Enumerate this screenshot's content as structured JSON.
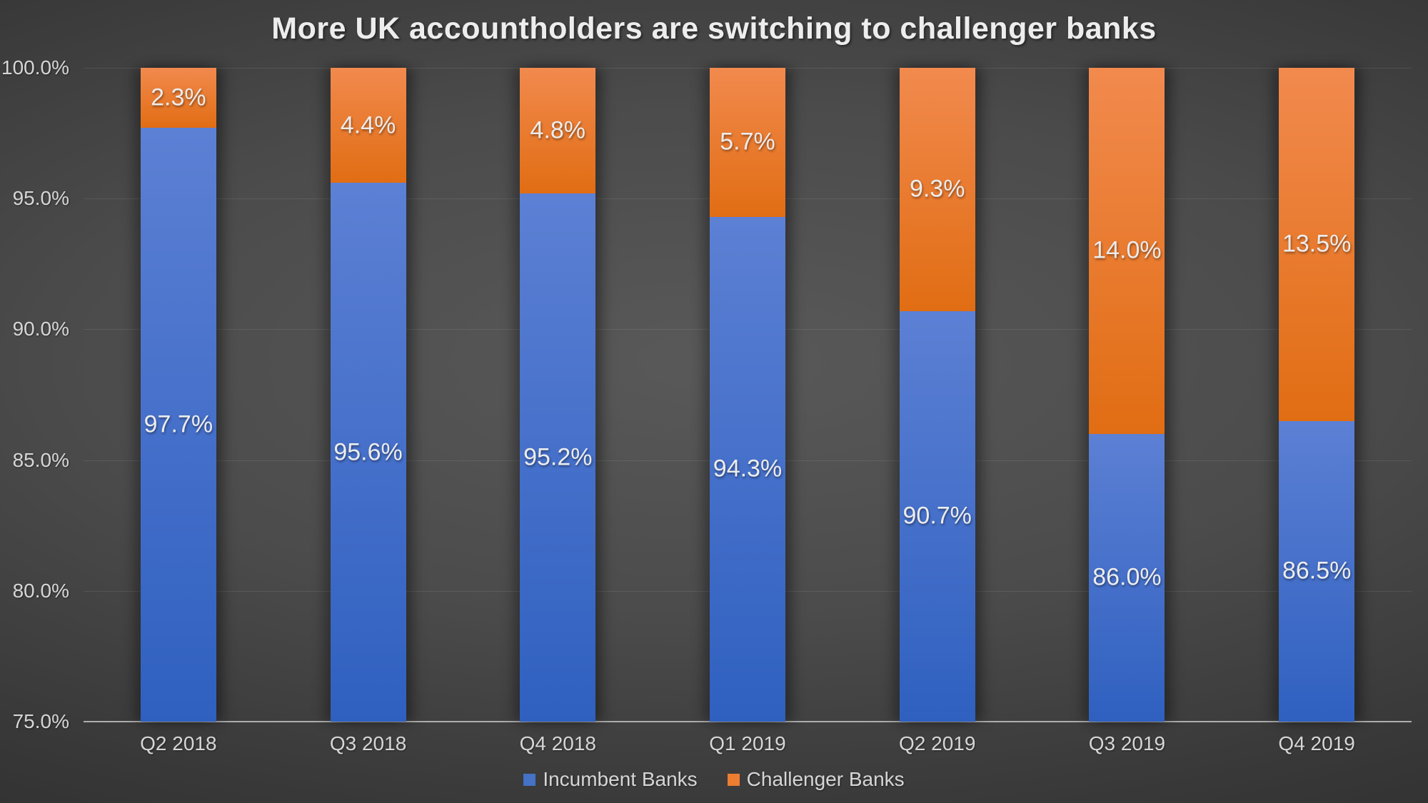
{
  "chart_data": {
    "type": "bar",
    "stacked": true,
    "orientation": "vertical",
    "title": "More UK accountholders are switching to challenger banks",
    "categories": [
      "Q2 2018",
      "Q3 2018",
      "Q4 2018",
      "Q1 2019",
      "Q2 2019",
      "Q3 2019",
      "Q4 2019"
    ],
    "series": [
      {
        "name": "Incumbent Banks",
        "color": "#4472c4",
        "gradient_top": "#5c80d4",
        "gradient_bottom": "#2f60c0",
        "values": [
          97.7,
          95.6,
          95.2,
          94.3,
          90.7,
          86.0,
          86.5
        ],
        "labels": [
          "97.7%",
          "95.6%",
          "95.2%",
          "94.3%",
          "90.7%",
          "86.0%",
          "86.5%"
        ]
      },
      {
        "name": "Challenger Banks",
        "color": "#ed7d31",
        "gradient_top": "#f28a4e",
        "gradient_bottom": "#e16d13",
        "values": [
          2.3,
          4.4,
          4.8,
          5.7,
          9.3,
          14.0,
          13.5
        ],
        "labels": [
          "2.3%",
          "4.4%",
          "4.8%",
          "5.7%",
          "9.3%",
          "14.0%",
          "13.5%"
        ]
      }
    ],
    "y_axis": {
      "min": 75,
      "max": 100,
      "tick_step": 5,
      "ticks": [
        75,
        80,
        85,
        90,
        95,
        100
      ],
      "tick_labels": [
        "75.0%",
        "80.0%",
        "85.0%",
        "90.0%",
        "95.0%",
        "100.0%"
      ]
    },
    "grid": true,
    "legend": {
      "position": "bottom",
      "items": [
        "Incumbent Banks",
        "Challenger Banks"
      ]
    },
    "background": "dark-radial-gradient",
    "colors": {
      "background_center": "#595959",
      "background_edge": "#262626",
      "gridline": "rgba(255,255,255,0.09)",
      "axis_line": "#aeaeae",
      "text": "#d6d6d6",
      "title_text": "#ededed",
      "data_label_text": "#ececec"
    }
  }
}
